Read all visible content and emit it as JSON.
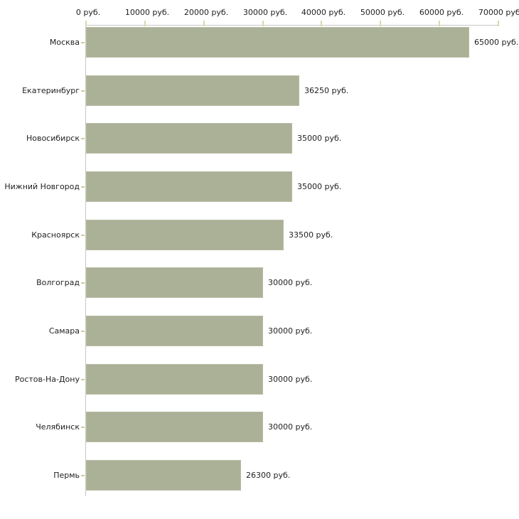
{
  "chart_data": {
    "type": "bar",
    "orientation": "horizontal",
    "title": "",
    "xlabel": "",
    "ylabel": "",
    "unit": "руб.",
    "categories": [
      "Москва",
      "Екатеринбург",
      "Новосибирск",
      "Нижний Новгород",
      "Красноярск",
      "Волгоград",
      "Самара",
      "Ростов-На-Дону",
      "Челябинск",
      "Пермь"
    ],
    "values": [
      65000,
      36250,
      35000,
      35000,
      33500,
      30000,
      30000,
      30000,
      30000,
      26300
    ],
    "value_labels": [
      "65000 руб.",
      "36250 руб.",
      "35000 руб.",
      "35000 руб.",
      "33500 руб.",
      "30000 руб.",
      "30000 руб.",
      "30000 руб.",
      "30000 руб.",
      "26300 руб."
    ],
    "xlim": [
      0,
      70000
    ],
    "x_ticks": [
      0,
      10000,
      20000,
      30000,
      40000,
      50000,
      60000,
      70000
    ],
    "x_tick_labels": [
      "0 руб.",
      "10000 руб.",
      "20000 руб.",
      "30000 руб.",
      "40000 руб.",
      "50000 руб.",
      "60000 руб.",
      "70000 руб."
    ],
    "x_axis_position": "top",
    "grid": false,
    "legend": "none",
    "colors": {
      "bar_fill": "#abb197",
      "bar_edge": "#b8bea5",
      "axis_line": "#c6c6c6",
      "x_tick_mark": "#d8d8aa",
      "y_tick_mark": "#cccc9e",
      "text": "#1f1f1f",
      "background": "#ffffff"
    }
  }
}
